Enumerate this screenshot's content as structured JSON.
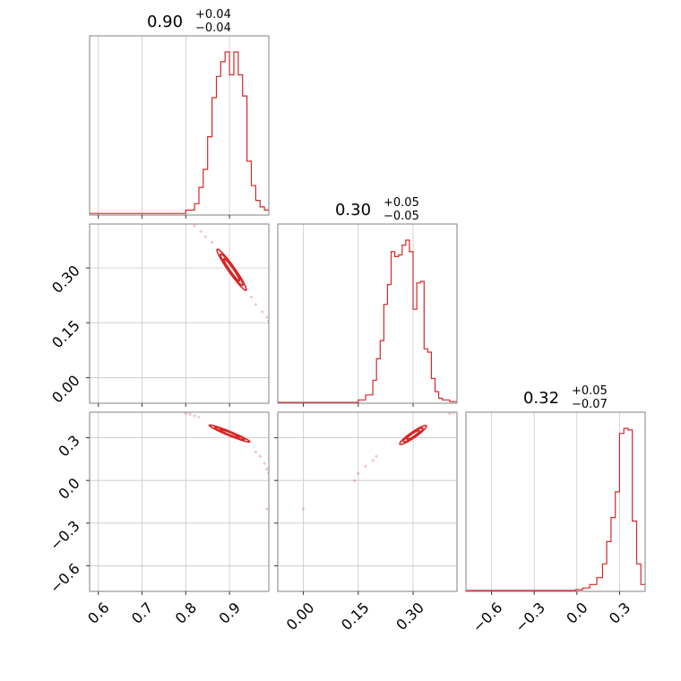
{
  "colors": {
    "series": "#d62728",
    "grid": "#c8c8c8",
    "frame": "#808080"
  },
  "chart_data": {
    "type": "corner",
    "grid": true,
    "parameters": [
      {
        "id": "p0",
        "title": {
          "value": "0.90",
          "plus": "+0.04",
          "minus": "−0.04"
        },
        "range": [
          0.58,
          0.99
        ],
        "ticks": [
          0.6,
          0.7,
          0.8,
          0.9
        ],
        "tick_labels": [
          "0.6",
          "0.7",
          "0.8",
          "0.9"
        ],
        "hist_bins_x": [
          0.58,
          0.8,
          0.82,
          0.83,
          0.84,
          0.85,
          0.86,
          0.87,
          0.88,
          0.89,
          0.9,
          0.91,
          0.92,
          0.93,
          0.94,
          0.95,
          0.96,
          0.97,
          0.98,
          0.99
        ],
        "hist_values": [
          0.01,
          0.03,
          0.07,
          0.17,
          0.28,
          0.48,
          0.72,
          0.85,
          0.94,
          1.0,
          0.86,
          1.0,
          0.86,
          0.73,
          0.33,
          0.18,
          0.09,
          0.05,
          0.03
        ]
      },
      {
        "id": "p1",
        "title": {
          "value": "0.30",
          "plus": "+0.05",
          "minus": "−0.05"
        },
        "range": [
          -0.07,
          0.42
        ],
        "ticks": [
          0.0,
          0.15,
          0.3
        ],
        "tick_labels": [
          "0.00",
          "0.15",
          "0.30"
        ],
        "hist_bins_x": [
          -0.07,
          0.15,
          0.17,
          0.19,
          0.2,
          0.21,
          0.22,
          0.23,
          0.24,
          0.25,
          0.26,
          0.27,
          0.28,
          0.29,
          0.3,
          0.31,
          0.32,
          0.33,
          0.34,
          0.35,
          0.36,
          0.37,
          0.38,
          0.4,
          0.42
        ],
        "hist_values": [
          0.005,
          0.02,
          0.05,
          0.14,
          0.27,
          0.38,
          0.6,
          0.72,
          0.92,
          0.89,
          0.9,
          0.96,
          0.99,
          0.92,
          0.57,
          0.73,
          0.74,
          0.33,
          0.31,
          0.15,
          0.07,
          0.03,
          0.02,
          0.01
        ]
      },
      {
        "id": "p2",
        "title": {
          "value": "0.32",
          "plus": "+0.05",
          "minus": "−0.07"
        },
        "range": [
          -0.78,
          0.48
        ],
        "ticks": [
          -0.6,
          -0.3,
          0.0,
          0.3
        ],
        "tick_labels": [
          "−0.6",
          "−0.3",
          "0.0",
          "0.3"
        ],
        "hist_bins_x": [
          -0.78,
          -0.01,
          0.04,
          0.09,
          0.14,
          0.18,
          0.21,
          0.24,
          0.27,
          0.3,
          0.33,
          0.36,
          0.39,
          0.42,
          0.45,
          0.48
        ],
        "hist_values": [
          0.005,
          0.01,
          0.02,
          0.04,
          0.08,
          0.16,
          0.29,
          0.43,
          0.58,
          0.92,
          0.95,
          0.94,
          0.41,
          0.16,
          0.04
        ]
      }
    ],
    "pairs": [
      {
        "x": "p0",
        "y": "p1",
        "contours": [
          {
            "center": [
              0.905,
              0.295
            ],
            "semi_major": 0.065,
            "semi_minor": 0.008,
            "slope": -1.7
          },
          {
            "center": [
              0.905,
              0.295
            ],
            "semi_major": 0.05,
            "semi_minor": 0.006,
            "slope": -1.7
          },
          {
            "center": [
              0.905,
              0.295
            ],
            "semi_major": 0.035,
            "semi_minor": 0.004,
            "slope": -1.7
          }
        ],
        "scatter": [
          [
            0.81,
            0.43
          ],
          [
            0.82,
            0.415
          ],
          [
            0.835,
            0.4
          ],
          [
            0.845,
            0.385
          ],
          [
            0.86,
            0.37
          ],
          [
            0.95,
            0.22
          ],
          [
            0.96,
            0.2
          ],
          [
            0.975,
            0.18
          ],
          [
            0.985,
            0.165
          ],
          [
            0.99,
            0.155
          ]
        ]
      },
      {
        "x": "p0",
        "y": "p2",
        "contours": [
          {
            "center": [
              0.9,
              0.33
            ],
            "semi_major": 0.075,
            "semi_minor": 0.01,
            "slope": -1.3
          },
          {
            "center": [
              0.9,
              0.33
            ],
            "semi_major": 0.055,
            "semi_minor": 0.007,
            "slope": -1.3
          },
          {
            "center": [
              0.9,
              0.33
            ],
            "semi_major": 0.035,
            "semi_minor": 0.005,
            "slope": -1.3
          }
        ],
        "scatter": [
          [
            0.8,
            0.47
          ],
          [
            0.81,
            0.465
          ],
          [
            0.82,
            0.455
          ],
          [
            0.83,
            0.445
          ],
          [
            0.96,
            0.2
          ],
          [
            0.97,
            0.17
          ],
          [
            0.98,
            0.12
          ],
          [
            0.985,
            0.08
          ],
          [
            0.99,
            0.05
          ],
          [
            0.985,
            -0.2
          ]
        ]
      },
      {
        "x": "p1",
        "y": "p2",
        "contours": [
          {
            "center": [
              0.3,
              0.32
            ],
            "semi_major": 0.075,
            "semi_minor": 0.012,
            "slope": 1.9
          },
          {
            "center": [
              0.3,
              0.32
            ],
            "semi_major": 0.055,
            "semi_minor": 0.009,
            "slope": 1.9
          },
          {
            "center": [
              0.3,
              0.32
            ],
            "semi_major": 0.035,
            "semi_minor": 0.006,
            "slope": 1.9
          }
        ],
        "scatter": [
          [
            0.14,
            0.0
          ],
          [
            0.15,
            0.05
          ],
          [
            0.17,
            0.1
          ],
          [
            0.19,
            0.14
          ],
          [
            0.2,
            0.17
          ],
          [
            0.4,
            0.47
          ],
          [
            0.41,
            0.475
          ],
          [
            0.0,
            -0.2
          ]
        ]
      }
    ]
  }
}
